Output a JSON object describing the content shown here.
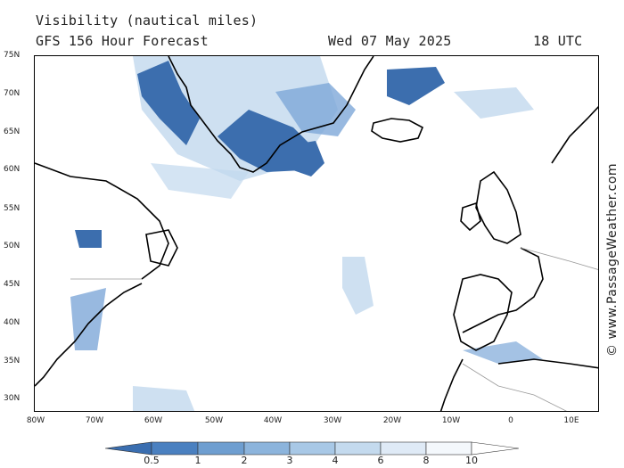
{
  "header": {
    "title": "Visibility (nautical miles)",
    "subtitle": "GFS 156 Hour Forecast",
    "date": "Wed 07 May 2025",
    "time": "18 UTC"
  },
  "axes": {
    "lat_labels": [
      "75N",
      "70N",
      "65N",
      "60N",
      "55N",
      "50N",
      "45N",
      "40N",
      "35N",
      "30N"
    ],
    "lon_labels": [
      "80W",
      "70W",
      "60W",
      "50W",
      "40W",
      "30W",
      "20W",
      "10W",
      "0",
      "10E"
    ]
  },
  "watermark": "© www.PassageWeather.com",
  "legend": {
    "ticks": [
      "0.5",
      "1",
      "2",
      "3",
      "4",
      "6",
      "8",
      "10"
    ],
    "colors": [
      "#3a6eb0",
      "#4a80c0",
      "#6e9ed0",
      "#8cb4dc",
      "#a8c8e6",
      "#c4daee",
      "#dfeaf6",
      "#f4f8fc"
    ]
  },
  "colors": {
    "coast": "#000000",
    "border": "#9a9a9a",
    "fog_dark": "#3c6eae",
    "fog_mid": "#7ea8d8",
    "fog_light": "#c2d8ee"
  }
}
